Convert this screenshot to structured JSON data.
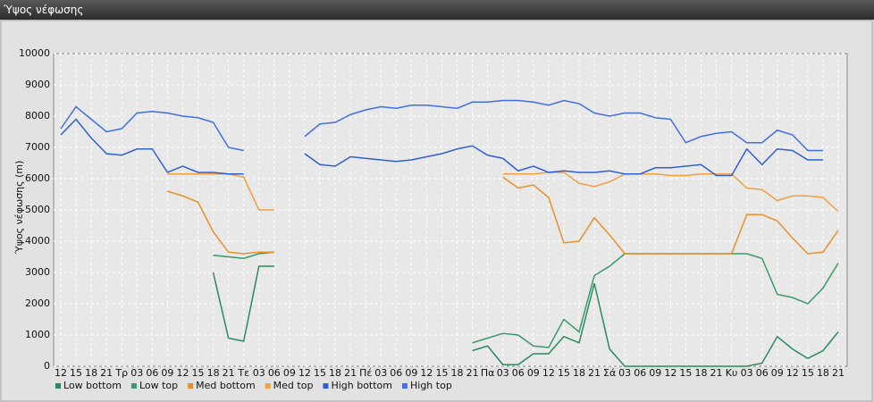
{
  "chart_data": {
    "type": "line",
    "title": "Ύψος νέφωσης",
    "y_label": "Ύψος νέφωσης (m)",
    "categories": [
      "12",
      "15",
      "18",
      "21",
      "Τρ",
      "03",
      "06",
      "09",
      "12",
      "15",
      "18",
      "21",
      "Τε",
      "03",
      "06",
      "09",
      "12",
      "15",
      "18",
      "21",
      "Πέ",
      "03",
      "06",
      "09",
      "12",
      "15",
      "18",
      "21",
      "Πα",
      "03",
      "06",
      "09",
      "12",
      "15",
      "18",
      "21",
      "Σά",
      "03",
      "06",
      "09",
      "12",
      "15",
      "18",
      "21",
      "Κυ",
      "03",
      "06",
      "09",
      "12",
      "15",
      "18",
      "21"
    ],
    "ylim": [
      0,
      10000
    ],
    "yticks": [
      0,
      1000,
      2000,
      3000,
      4000,
      5000,
      6000,
      7000,
      8000,
      9000,
      10000
    ],
    "grid": true,
    "series": [
      {
        "name": "Low bottom",
        "color": "#2a8a5a",
        "values": [
          null,
          null,
          null,
          null,
          null,
          null,
          null,
          null,
          null,
          null,
          3000,
          900,
          800,
          3200,
          3200,
          null,
          null,
          null,
          null,
          null,
          null,
          null,
          null,
          null,
          null,
          null,
          null,
          500,
          650,
          50,
          50,
          400,
          400,
          950,
          750,
          2650,
          550,
          0,
          0,
          0,
          0,
          0,
          0,
          0,
          0,
          0,
          100,
          950,
          550,
          250,
          500,
          1100
        ]
      },
      {
        "name": "Low top",
        "color": "#3a9a6a",
        "values": [
          null,
          null,
          null,
          null,
          null,
          null,
          null,
          null,
          null,
          null,
          3550,
          3500,
          3450,
          3600,
          3650,
          null,
          null,
          null,
          null,
          null,
          null,
          null,
          null,
          null,
          null,
          null,
          null,
          750,
          900,
          1050,
          1000,
          650,
          600,
          1500,
          1100,
          2900,
          3200,
          3600,
          3600,
          3600,
          3600,
          3600,
          3600,
          3600,
          3600,
          3600,
          3450,
          2300,
          2200,
          2000,
          2500,
          3300
        ]
      },
      {
        "name": "Med bottom",
        "color": "#e8902a",
        "values": [
          null,
          null,
          null,
          null,
          null,
          null,
          null,
          5600,
          5450,
          5250,
          4300,
          3650,
          3600,
          3650,
          3650,
          null,
          null,
          null,
          null,
          null,
          null,
          null,
          null,
          null,
          null,
          null,
          null,
          null,
          null,
          6050,
          5700,
          5800,
          5400,
          3950,
          4000,
          4750,
          4200,
          3600,
          3600,
          3600,
          3600,
          3600,
          3600,
          3600,
          3600,
          4850,
          4850,
          4650,
          4100,
          3600,
          3650,
          4350
        ]
      },
      {
        "name": "Med top",
        "color": "#f0a040",
        "values": [
          null,
          null,
          null,
          null,
          null,
          null,
          null,
          6150,
          6150,
          6150,
          6150,
          6150,
          6050,
          5000,
          5000,
          null,
          null,
          null,
          null,
          null,
          null,
          null,
          null,
          null,
          null,
          null,
          null,
          null,
          null,
          6150,
          6150,
          6150,
          6200,
          6200,
          5850,
          5750,
          5900,
          6150,
          6150,
          6150,
          6100,
          6100,
          6150,
          6150,
          6150,
          5700,
          5650,
          5300,
          5450,
          5450,
          5400,
          4950
        ]
      },
      {
        "name": "High bottom",
        "color": "#2f5fd0",
        "values": [
          7400,
          7900,
          7300,
          6800,
          6750,
          6950,
          6950,
          6200,
          6400,
          6200,
          6200,
          6150,
          6150,
          null,
          null,
          null,
          6800,
          6450,
          6400,
          6700,
          6650,
          6600,
          6550,
          6600,
          6700,
          6800,
          6950,
          7050,
          6750,
          6650,
          6250,
          6400,
          6200,
          6250,
          6200,
          6200,
          6250,
          6150,
          6150,
          6350,
          6350,
          6400,
          6450,
          6100,
          6100,
          6950,
          6450,
          6950,
          6900,
          6600,
          6600,
          null
        ]
      },
      {
        "name": "High top",
        "color": "#4070e0",
        "values": [
          7600,
          8300,
          7900,
          7500,
          7600,
          8100,
          8150,
          8100,
          8000,
          7950,
          7800,
          7000,
          6900,
          null,
          null,
          null,
          7350,
          7750,
          7800,
          8050,
          8200,
          8300,
          8250,
          8350,
          8350,
          8300,
          8250,
          8450,
          8450,
          8500,
          8500,
          8450,
          8350,
          8500,
          8400,
          8100,
          8000,
          8100,
          8100,
          7950,
          7900,
          7150,
          7350,
          7450,
          7500,
          7150,
          7150,
          7550,
          7400,
          6900,
          6900,
          null
        ]
      }
    ]
  }
}
